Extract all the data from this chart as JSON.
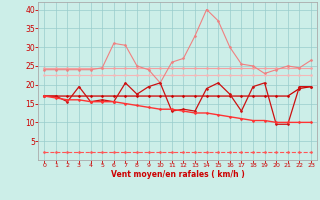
{
  "x": [
    0,
    1,
    2,
    3,
    4,
    5,
    6,
    7,
    8,
    9,
    10,
    11,
    12,
    13,
    14,
    15,
    16,
    17,
    18,
    19,
    20,
    21,
    22,
    23
  ],
  "series": [
    {
      "name": "light_pink_flat1",
      "color": "#f4a0a0",
      "linewidth": 0.8,
      "marker": "D",
      "markersize": 1.5,
      "linestyle": "-",
      "values": [
        24.5,
        24.5,
        24.5,
        24.5,
        24.5,
        24.5,
        24.5,
        24.5,
        24.5,
        24.5,
        24.5,
        24.5,
        24.5,
        24.5,
        24.5,
        24.5,
        24.5,
        24.5,
        24.5,
        24.5,
        24.5,
        24.5,
        24.5,
        24.5
      ]
    },
    {
      "name": "light_pink_flat2",
      "color": "#f4b8b8",
      "linewidth": 0.8,
      "marker": "D",
      "markersize": 1.5,
      "linestyle": "-",
      "values": [
        22.5,
        22.5,
        22.5,
        22.5,
        22.5,
        22.5,
        22.5,
        22.5,
        22.5,
        22.5,
        22.5,
        22.5,
        22.5,
        22.5,
        22.5,
        22.5,
        22.5,
        22.5,
        22.5,
        22.5,
        22.5,
        22.5,
        22.5,
        22.5
      ]
    },
    {
      "name": "light_pink_wavy",
      "color": "#f08080",
      "linewidth": 0.8,
      "marker": "D",
      "markersize": 1.5,
      "linestyle": "-",
      "values": [
        24.0,
        24.0,
        24.0,
        24.0,
        24.0,
        24.5,
        31.0,
        30.5,
        25.0,
        24.0,
        20.5,
        26.0,
        27.0,
        33.0,
        40.0,
        37.0,
        30.0,
        25.5,
        25.0,
        23.0,
        24.0,
        25.0,
        24.5,
        26.5
      ]
    },
    {
      "name": "dark_red_flat",
      "color": "#cc0000",
      "linewidth": 0.9,
      "marker": "D",
      "markersize": 1.5,
      "linestyle": "-",
      "values": [
        17.0,
        17.0,
        17.0,
        17.0,
        17.0,
        17.0,
        17.0,
        17.0,
        17.0,
        17.0,
        17.0,
        17.0,
        17.0,
        17.0,
        17.0,
        17.0,
        17.0,
        17.0,
        17.0,
        17.0,
        17.0,
        17.0,
        19.0,
        19.5
      ]
    },
    {
      "name": "dark_red_wavy",
      "color": "#cc1111",
      "linewidth": 0.9,
      "marker": "D",
      "markersize": 1.5,
      "linestyle": "-",
      "values": [
        17.0,
        17.0,
        15.5,
        19.5,
        15.5,
        16.0,
        15.5,
        20.5,
        17.5,
        19.5,
        20.5,
        13.0,
        13.5,
        13.0,
        19.0,
        20.5,
        17.5,
        13.0,
        19.5,
        20.5,
        9.5,
        9.5,
        19.5,
        19.5
      ]
    },
    {
      "name": "red_declining",
      "color": "#ff3333",
      "linewidth": 1.0,
      "marker": "D",
      "markersize": 1.5,
      "linestyle": "-",
      "values": [
        17.0,
        16.5,
        16.0,
        16.0,
        15.5,
        15.5,
        15.5,
        15.0,
        14.5,
        14.0,
        13.5,
        13.5,
        13.0,
        12.5,
        12.5,
        12.0,
        11.5,
        11.0,
        10.5,
        10.5,
        10.0,
        10.0,
        10.0,
        10.0
      ]
    },
    {
      "name": "dashed_bottom",
      "color": "#ff5555",
      "linewidth": 0.8,
      "marker": "D",
      "markersize": 1.5,
      "linestyle": "--",
      "values": [
        2.0,
        2.0,
        2.0,
        2.0,
        2.0,
        2.0,
        2.0,
        2.0,
        2.0,
        2.0,
        2.0,
        2.0,
        2.0,
        2.0,
        2.0,
        2.0,
        2.0,
        2.0,
        2.0,
        2.0,
        2.0,
        2.0,
        2.0,
        2.0
      ]
    }
  ],
  "ylim": [
    0,
    42
  ],
  "xlim": [
    -0.5,
    23.5
  ],
  "yticks": [
    5,
    10,
    15,
    20,
    25,
    30,
    35,
    40
  ],
  "xticks": [
    0,
    1,
    2,
    3,
    4,
    5,
    6,
    7,
    8,
    9,
    10,
    11,
    12,
    13,
    14,
    15,
    16,
    17,
    18,
    19,
    20,
    21,
    22,
    23
  ],
  "xlabel": "Vent moyen/en rafales ( km/h )",
  "background_color": "#cceee8",
  "grid_color": "#99cccc",
  "tick_color": "#cc0000",
  "label_color": "#cc0000"
}
